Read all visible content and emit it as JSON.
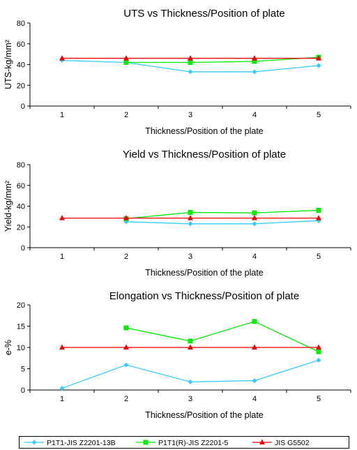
{
  "chart_data": [
    {
      "type": "line",
      "title": "UTS vs Thickness/Position of plate",
      "xlabel": "Thickness/Position of the plate",
      "ylabel": "UTS-kg/mm²",
      "categories": [
        "1",
        "2",
        "3",
        "4",
        "5"
      ],
      "ylim": [
        0,
        80
      ],
      "yticks": [
        "0",
        "20",
        "40",
        "60",
        "80"
      ],
      "series": [
        {
          "name": "P1T1-JIS Z2201-13B",
          "values": [
            44,
            42,
            33,
            33,
            39
          ]
        },
        {
          "name": "P1T1(R)-JIS Z2201-5",
          "values": [
            null,
            42,
            42,
            43,
            47
          ]
        },
        {
          "name": "JIS G5502",
          "values": [
            46,
            46,
            46,
            46,
            46
          ]
        }
      ]
    },
    {
      "type": "line",
      "title": "Yield vs Thickness/Position of plate",
      "xlabel": "Thickness/Position of the plate",
      "ylabel": "Yield-kg/mm²",
      "categories": [
        "1",
        "2",
        "3",
        "4",
        "5"
      ],
      "ylim": [
        0,
        80
      ],
      "yticks": [
        "0",
        "20",
        "40",
        "60",
        "80"
      ],
      "series": [
        {
          "name": "P1T1-JIS Z2201-13B",
          "values": [
            null,
            25,
            23,
            23,
            26
          ]
        },
        {
          "name": "P1T1(R)-JIS Z2201-5",
          "values": [
            null,
            28,
            34,
            33.5,
            36
          ]
        },
        {
          "name": "JIS G5502",
          "values": [
            28.5,
            28.5,
            28.5,
            28.5,
            28.5
          ]
        }
      ]
    },
    {
      "type": "line",
      "title": "Elongation vs Thickness/Position of plate",
      "xlabel": "Thickness/Position of the plate",
      "ylabel": "e-%",
      "categories": [
        "1",
        "2",
        "3",
        "4",
        "5"
      ],
      "ylim": [
        0,
        20
      ],
      "yticks": [
        "0",
        "5",
        "10",
        "15",
        "20"
      ],
      "series": [
        {
          "name": "P1T1-JIS Z2201-13B",
          "values": [
            0.4,
            5.9,
            1.9,
            2.2,
            7.0
          ]
        },
        {
          "name": "P1T1(R)-JIS Z2201-5",
          "values": [
            null,
            14.6,
            11.5,
            16.1,
            9.0
          ]
        },
        {
          "name": "JIS G5502",
          "values": [
            10,
            10,
            10,
            10,
            10
          ]
        }
      ]
    }
  ],
  "legend": {
    "entries": [
      {
        "label": "P1T1-JIS Z2201-13B",
        "color": "#33ccff",
        "marker": "diamond"
      },
      {
        "label": "P1T1(R)-JIS Z2201-5",
        "color": "#00ee00",
        "marker": "square"
      },
      {
        "label": "JIS G5502",
        "color": "#ee0000",
        "marker": "triangle"
      }
    ]
  }
}
